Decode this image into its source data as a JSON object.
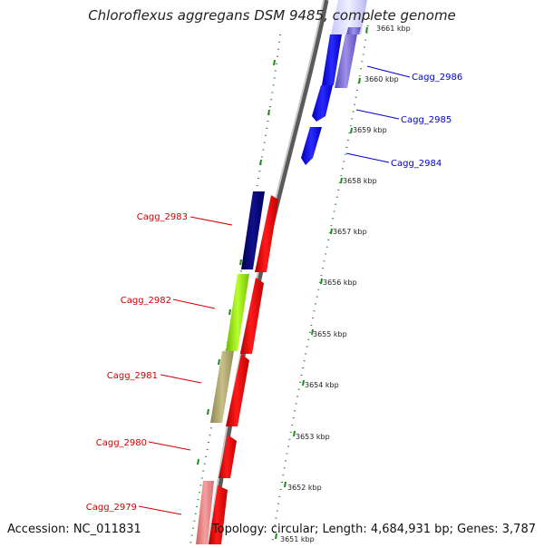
{
  "title": "Chloroflexus aggregans DSM 9485, complete genome",
  "accession": "Accession: NC_011831",
  "summary": "Topology: circular; Length: 4,684,931 bp; Genes: 3,787",
  "colors": {
    "backbone": "#8a8a8a",
    "tick": "#1f8a1f",
    "red_gene": "#ff0000",
    "blue_gene": "#0000ff",
    "label_red": "#cc0000",
    "label_blue": "#0000cc"
  },
  "scale_ticks": [
    {
      "label": "3651 kbp"
    },
    {
      "label": "3652 kbp"
    },
    {
      "label": "3653 kbp"
    },
    {
      "label": "3654 kbp"
    },
    {
      "label": "3655 kbp"
    },
    {
      "label": "3656 kbp"
    },
    {
      "label": "3657 kbp"
    },
    {
      "label": "3658 kbp"
    },
    {
      "label": "3659 kbp"
    },
    {
      "label": "3660 kbp"
    },
    {
      "label": "3661 kbp"
    }
  ],
  "gene_labels": [
    {
      "name": "Cagg_2986",
      "color": "blue"
    },
    {
      "name": "Cagg_2985",
      "color": "blue"
    },
    {
      "name": "Cagg_2984",
      "color": "blue"
    },
    {
      "name": "Cagg_2983",
      "color": "red"
    },
    {
      "name": "Cagg_2982",
      "color": "red"
    },
    {
      "name": "Cagg_2981",
      "color": "red"
    },
    {
      "name": "Cagg_2980",
      "color": "red"
    },
    {
      "name": "Cagg_2979",
      "color": "red"
    }
  ]
}
